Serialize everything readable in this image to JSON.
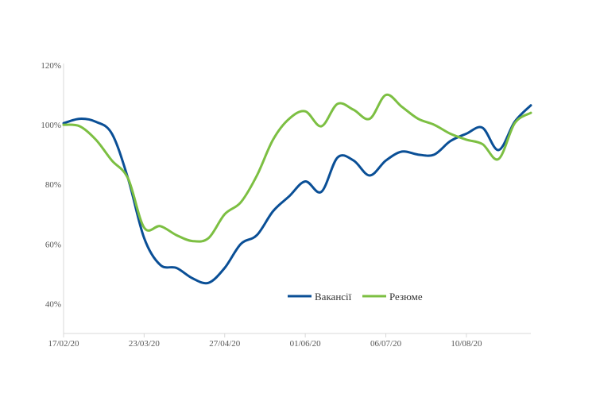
{
  "chart_data": {
    "type": "line",
    "title": "",
    "xlabel": "",
    "ylabel": "",
    "ylim": [
      30,
      120
    ],
    "y_ticks": [
      40,
      60,
      80,
      100,
      120
    ],
    "y_tick_labels": [
      "40%",
      "60%",
      "80%",
      "100%",
      "120%"
    ],
    "x_ticks": [
      "17/02/20",
      "23/03/20",
      "27/04/20",
      "01/06/20",
      "06/07/20",
      "10/08/20"
    ],
    "grid": false,
    "legend_position": "lower-right",
    "series": [
      {
        "name": "Вакансії",
        "color": "#0a4f96",
        "points": [
          [
            "17/02/20",
            100.5
          ],
          [
            "24/02/20",
            102
          ],
          [
            "02/03/20",
            101
          ],
          [
            "09/03/20",
            97
          ],
          [
            "16/03/20",
            82
          ],
          [
            "23/03/20",
            62
          ],
          [
            "30/03/20",
            53
          ],
          [
            "06/04/20",
            52
          ],
          [
            "13/04/20",
            48.5
          ],
          [
            "20/04/20",
            47
          ],
          [
            "27/04/20",
            52
          ],
          [
            "04/05/20",
            60
          ],
          [
            "11/05/20",
            63
          ],
          [
            "18/05/20",
            71
          ],
          [
            "25/05/20",
            76
          ],
          [
            "01/06/20",
            81
          ],
          [
            "08/06/20",
            77.5
          ],
          [
            "15/06/20",
            89
          ],
          [
            "22/06/20",
            88
          ],
          [
            "29/06/20",
            83
          ],
          [
            "06/07/20",
            88
          ],
          [
            "13/07/20",
            91
          ],
          [
            "20/07/20",
            90
          ],
          [
            "27/07/20",
            90
          ],
          [
            "03/08/20",
            94.5
          ],
          [
            "10/08/20",
            97
          ],
          [
            "17/08/20",
            99
          ],
          [
            "24/08/20",
            91.5
          ],
          [
            "31/08/20",
            101
          ],
          [
            "07/09/20",
            106.5
          ]
        ]
      },
      {
        "name": "Резюме",
        "color": "#7cbf42",
        "points": [
          [
            "17/02/20",
            100
          ],
          [
            "24/02/20",
            99.5
          ],
          [
            "02/03/20",
            95
          ],
          [
            "09/03/20",
            88
          ],
          [
            "16/03/20",
            82
          ],
          [
            "23/03/20",
            65.5
          ],
          [
            "30/03/20",
            66
          ],
          [
            "06/04/20",
            63
          ],
          [
            "13/04/20",
            61
          ],
          [
            "20/04/20",
            62
          ],
          [
            "27/04/20",
            70
          ],
          [
            "04/05/20",
            74
          ],
          [
            "11/05/20",
            83
          ],
          [
            "18/05/20",
            95
          ],
          [
            "25/05/20",
            102
          ],
          [
            "01/06/20",
            104.5
          ],
          [
            "08/06/20",
            99.5
          ],
          [
            "15/06/20",
            107
          ],
          [
            "22/06/20",
            105
          ],
          [
            "29/06/20",
            102
          ],
          [
            "06/07/20",
            110
          ],
          [
            "13/07/20",
            106
          ],
          [
            "20/07/20",
            102
          ],
          [
            "27/07/20",
            100
          ],
          [
            "03/08/20",
            97
          ],
          [
            "10/08/20",
            95
          ],
          [
            "17/08/20",
            93.5
          ],
          [
            "24/08/20",
            88.5
          ],
          [
            "31/08/20",
            100.5
          ],
          [
            "07/09/20",
            104
          ]
        ]
      }
    ]
  }
}
